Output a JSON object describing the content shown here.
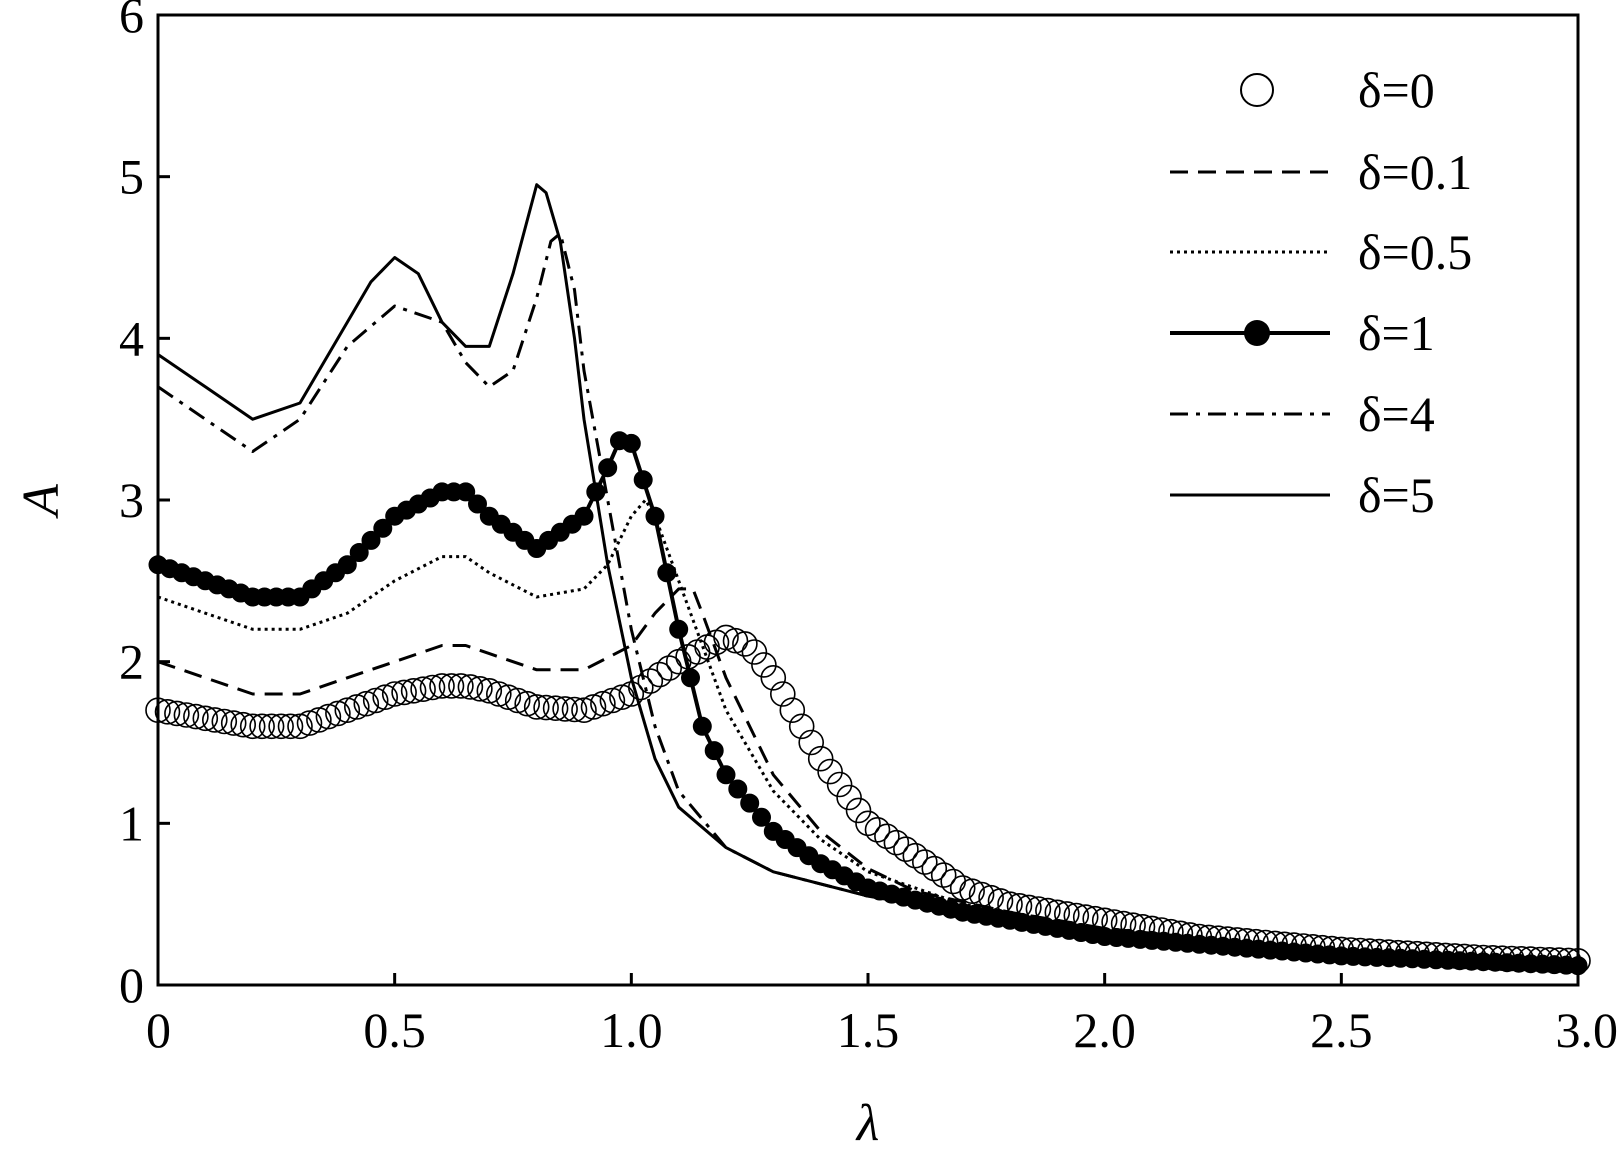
{
  "chart_data": {
    "type": "line",
    "xlabel": "λ",
    "ylabel": "A",
    "xlim": [
      0,
      3.0
    ],
    "ylim": [
      0,
      6
    ],
    "x_ticks": [
      "0",
      "0.5",
      "1.0",
      "1.5",
      "2.0",
      "2.5",
      "3.0"
    ],
    "y_ticks": [
      "0",
      "1",
      "2",
      "3",
      "4",
      "5",
      "6"
    ],
    "grid": false,
    "legend_position": "top-right",
    "series": [
      {
        "name": "δ=0",
        "style": "open-circles",
        "x": [
          0,
          0.1,
          0.2,
          0.3,
          0.4,
          0.5,
          0.6,
          0.65,
          0.7,
          0.8,
          0.9,
          1.0,
          1.1,
          1.2,
          1.25,
          1.3,
          1.4,
          1.5,
          1.6,
          1.7,
          1.8,
          2.0,
          2.2,
          2.5,
          2.8,
          3.0
        ],
        "y": [
          1.7,
          1.65,
          1.6,
          1.6,
          1.7,
          1.8,
          1.85,
          1.85,
          1.82,
          1.72,
          1.7,
          1.8,
          2.0,
          2.15,
          2.1,
          1.9,
          1.4,
          1.0,
          0.8,
          0.6,
          0.5,
          0.4,
          0.3,
          0.22,
          0.17,
          0.15
        ]
      },
      {
        "name": "δ=0.1",
        "style": "dashed",
        "x": [
          0,
          0.1,
          0.2,
          0.3,
          0.4,
          0.5,
          0.6,
          0.65,
          0.7,
          0.8,
          0.9,
          1.0,
          1.05,
          1.1,
          1.13,
          1.15,
          1.2,
          1.3,
          1.4,
          1.5,
          1.6,
          1.8,
          2.0,
          2.5,
          3.0
        ],
        "y": [
          2.0,
          1.9,
          1.8,
          1.8,
          1.9,
          2.0,
          2.1,
          2.1,
          2.05,
          1.95,
          1.95,
          2.1,
          2.3,
          2.45,
          2.45,
          2.3,
          1.9,
          1.3,
          0.95,
          0.72,
          0.58,
          0.45,
          0.35,
          0.2,
          0.13
        ]
      },
      {
        "name": "δ=0.5",
        "style": "dotted",
        "x": [
          0,
          0.1,
          0.2,
          0.3,
          0.4,
          0.5,
          0.6,
          0.65,
          0.7,
          0.8,
          0.9,
          0.95,
          1.0,
          1.03,
          1.05,
          1.1,
          1.2,
          1.3,
          1.4,
          1.5,
          1.7,
          2.0,
          2.5,
          3.0
        ],
        "y": [
          2.4,
          2.3,
          2.2,
          2.2,
          2.3,
          2.5,
          2.65,
          2.65,
          2.55,
          2.4,
          2.45,
          2.6,
          2.9,
          3.0,
          2.9,
          2.5,
          1.7,
          1.2,
          0.9,
          0.7,
          0.5,
          0.33,
          0.2,
          0.13
        ]
      },
      {
        "name": "δ=1",
        "style": "filled-circles-line",
        "x": [
          0,
          0.1,
          0.2,
          0.3,
          0.4,
          0.5,
          0.6,
          0.65,
          0.7,
          0.8,
          0.9,
          0.95,
          0.98,
          1.0,
          1.05,
          1.1,
          1.15,
          1.2,
          1.3,
          1.4,
          1.5,
          1.7,
          2.0,
          2.5,
          3.0
        ],
        "y": [
          2.6,
          2.5,
          2.4,
          2.4,
          2.6,
          2.9,
          3.05,
          3.05,
          2.9,
          2.7,
          2.9,
          3.2,
          3.4,
          3.35,
          2.9,
          2.2,
          1.6,
          1.3,
          0.95,
          0.75,
          0.6,
          0.45,
          0.3,
          0.18,
          0.12
        ]
      },
      {
        "name": "δ=4",
        "style": "dash-dot",
        "x": [
          0,
          0.1,
          0.2,
          0.3,
          0.4,
          0.5,
          0.6,
          0.65,
          0.7,
          0.75,
          0.8,
          0.83,
          0.85,
          0.88,
          0.9,
          0.95,
          1.0,
          1.05,
          1.1,
          1.2,
          1.3,
          1.5,
          1.7,
          2.0,
          2.5,
          3.0
        ],
        "y": [
          3.7,
          3.5,
          3.3,
          3.5,
          3.95,
          4.2,
          4.1,
          3.85,
          3.7,
          3.8,
          4.25,
          4.6,
          4.65,
          4.3,
          3.8,
          3.0,
          2.2,
          1.6,
          1.2,
          0.85,
          0.7,
          0.55,
          0.45,
          0.3,
          0.18,
          0.12
        ]
      },
      {
        "name": "δ=5",
        "style": "solid",
        "x": [
          0,
          0.1,
          0.2,
          0.3,
          0.4,
          0.45,
          0.5,
          0.55,
          0.6,
          0.65,
          0.7,
          0.75,
          0.8,
          0.82,
          0.85,
          0.88,
          0.9,
          0.95,
          1.0,
          1.05,
          1.1,
          1.2,
          1.3,
          1.5,
          1.7,
          2.0,
          2.5,
          3.0
        ],
        "y": [
          3.9,
          3.7,
          3.5,
          3.6,
          4.1,
          4.35,
          4.5,
          4.4,
          4.1,
          3.95,
          3.95,
          4.4,
          4.95,
          4.9,
          4.6,
          4.0,
          3.5,
          2.6,
          1.9,
          1.4,
          1.1,
          0.85,
          0.7,
          0.55,
          0.45,
          0.3,
          0.18,
          0.12
        ]
      }
    ]
  }
}
